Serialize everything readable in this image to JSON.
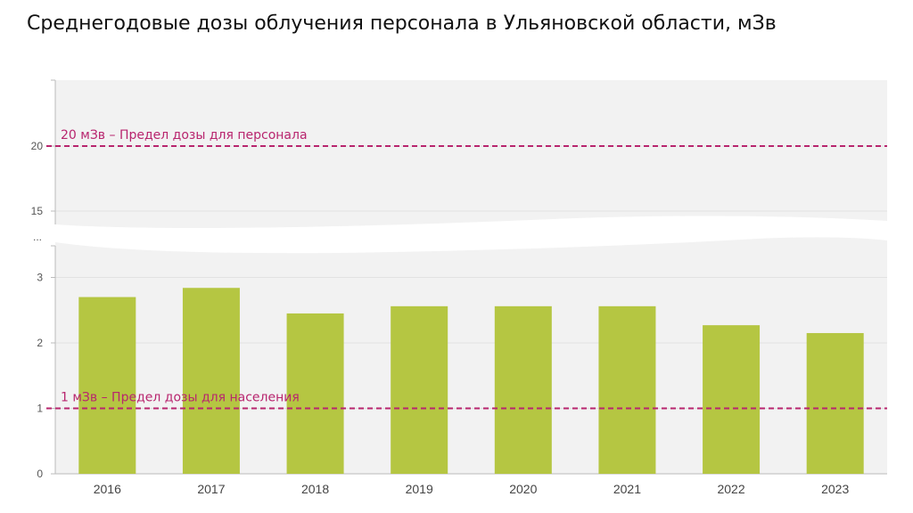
{
  "title": "Среднегодовые дозы облучения персонала в Ульяновской области, мЗв",
  "colors": {
    "bar": "#b5c642",
    "limit": "#b8256e",
    "background": "#f2f2f2",
    "axis": "#999999"
  },
  "chart_data": {
    "type": "bar",
    "title": "Среднегодовые дозы облучения персонала в Ульяновской области, мЗв",
    "xlabel": "",
    "ylabel": "",
    "categories": [
      "2016",
      "2017",
      "2018",
      "2019",
      "2020",
      "2021",
      "2022",
      "2023"
    ],
    "values": [
      2.7,
      2.84,
      2.45,
      2.56,
      2.56,
      2.56,
      2.27,
      2.15
    ],
    "axis_break": {
      "lower_range": [
        0,
        3.5
      ],
      "upper_range": [
        14,
        22
      ],
      "break_marker": "..."
    },
    "yticks_lower": [
      "0",
      "1",
      "2",
      "3"
    ],
    "yticks_upper": [
      "15",
      "20"
    ],
    "grid": true,
    "reference_lines": [
      {
        "value": 20,
        "label": "20 мЗв – Предел дозы для персонала"
      },
      {
        "value": 1,
        "label": "1 мЗв – Предел дозы для населения"
      }
    ]
  }
}
